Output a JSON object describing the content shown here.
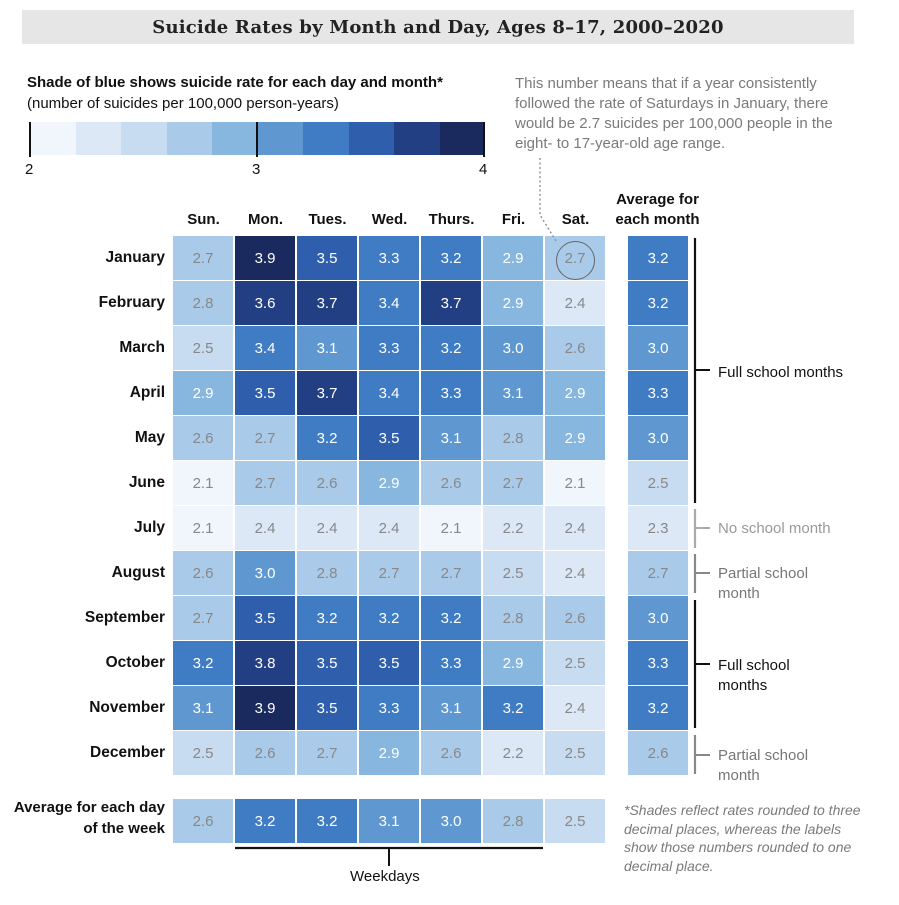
{
  "title": "Suicide Rates by Month and Day, Ages 8–17, 2000–2020",
  "legend": {
    "title": "Shade of blue shows suicide rate for each day and month*",
    "subtitle": "(number of suicides per 100,000 person-years)",
    "min_label": "2",
    "mid_label": "3",
    "max_label": "4",
    "colors": [
      "#f0f6fc",
      "#dde8f6",
      "#c8dcf1",
      "#a9cbe9",
      "#87b6df",
      "#5f98d1",
      "#3f7cc4",
      "#2f5fac",
      "#233f83",
      "#1b2a5e"
    ]
  },
  "annotation": "This number means that if a year consistently followed the rate of Saturdays in January, there would be 2.7 suicides per 100,000 people in the eight- to 17-year-old age range.",
  "avg_month_header": "Average for each month",
  "avg_day_label": "Average for each day of the week",
  "footnote": "*Shades reflect rates rounded to three decimal places, whereas the labels show those numbers rounded to one decimal place.",
  "weekdays_label": "Weekdays",
  "brackets": {
    "full1": "Full school months",
    "no_school": "No school month",
    "partial1": "Partial school month",
    "full2": "Full school months",
    "partial2": "Partial school month"
  },
  "chart_data": {
    "type": "heatmap",
    "title": "Suicide Rates by Month and Day, Ages 8–17, 2000–2020",
    "color_scale_range": [
      2,
      4
    ],
    "columns": [
      "Sun.",
      "Mon.",
      "Tues.",
      "Wed.",
      "Thurs.",
      "Fri.",
      "Sat."
    ],
    "rows": [
      "January",
      "February",
      "March",
      "April",
      "May",
      "June",
      "July",
      "August",
      "September",
      "October",
      "November",
      "December"
    ],
    "values": [
      [
        2.7,
        3.9,
        3.5,
        3.3,
        3.2,
        2.9,
        2.7
      ],
      [
        2.8,
        3.6,
        3.7,
        3.4,
        3.7,
        2.9,
        2.4
      ],
      [
        2.5,
        3.4,
        3.1,
        3.3,
        3.2,
        3.0,
        2.6
      ],
      [
        2.9,
        3.5,
        3.7,
        3.4,
        3.3,
        3.1,
        2.9
      ],
      [
        2.6,
        2.7,
        3.2,
        3.5,
        3.1,
        2.8,
        2.9
      ],
      [
        2.1,
        2.7,
        2.6,
        2.9,
        2.6,
        2.7,
        2.1
      ],
      [
        2.1,
        2.4,
        2.4,
        2.4,
        2.1,
        2.2,
        2.4
      ],
      [
        2.6,
        3.0,
        2.8,
        2.7,
        2.7,
        2.5,
        2.4
      ],
      [
        2.7,
        3.5,
        3.2,
        3.2,
        3.2,
        2.8,
        2.6
      ],
      [
        3.2,
        3.8,
        3.5,
        3.5,
        3.3,
        2.9,
        2.5
      ],
      [
        3.1,
        3.9,
        3.5,
        3.3,
        3.1,
        3.2,
        2.4
      ],
      [
        2.5,
        2.6,
        2.7,
        2.9,
        2.6,
        2.2,
        2.5
      ]
    ],
    "month_averages": [
      3.2,
      3.2,
      3.0,
      3.3,
      3.0,
      2.5,
      2.3,
      2.7,
      3.0,
      3.3,
      3.2,
      2.6
    ],
    "day_averages": [
      2.6,
      3.2,
      3.2,
      3.1,
      3.0,
      2.8,
      2.5
    ],
    "highlighted_cell": {
      "row": "January",
      "column": "Sat.",
      "value": 2.7
    }
  }
}
